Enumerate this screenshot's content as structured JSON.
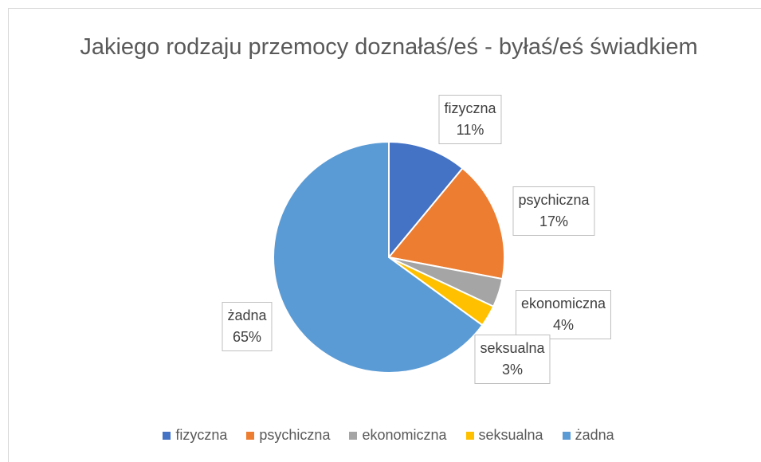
{
  "chart_data": {
    "type": "pie",
    "title": "Jakiego rodzaju przemocy doznałaś/eś - byłaś/eś świadkiem",
    "categories": [
      "fizyczna",
      "psychiczna",
      "ekonomiczna",
      "seksualna",
      "żadna"
    ],
    "values": [
      11,
      17,
      4,
      3,
      65
    ],
    "value_labels": [
      "11%",
      "17%",
      "4%",
      "3%",
      "65%"
    ],
    "colors": [
      "#4472c4",
      "#ed7d31",
      "#a5a5a5",
      "#ffc000",
      "#5b9bd5"
    ],
    "legend": "bottom"
  }
}
